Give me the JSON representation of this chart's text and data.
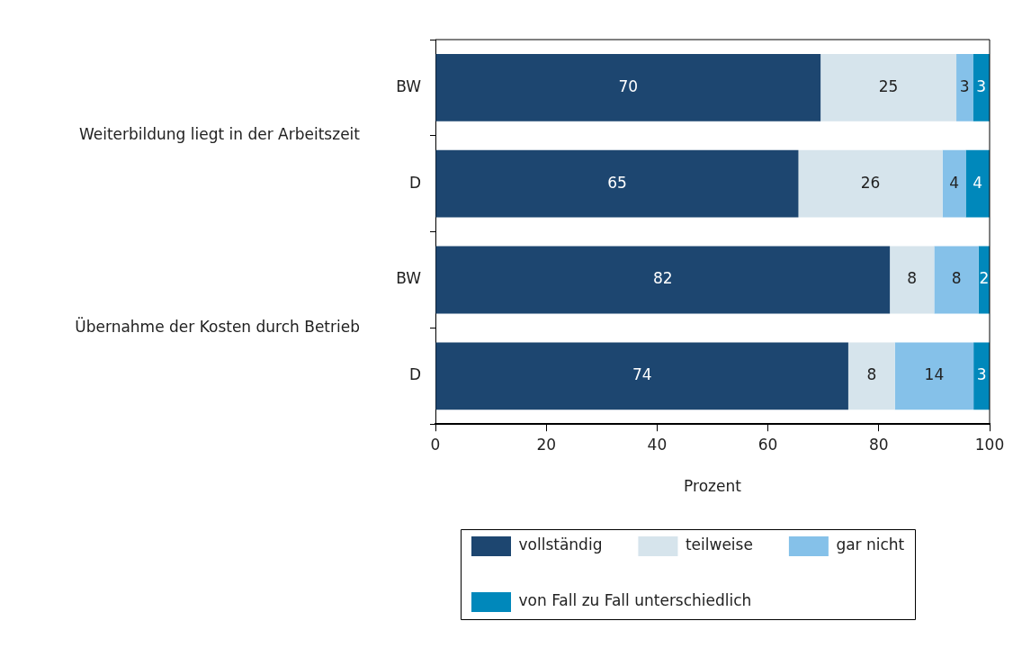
{
  "chart_data": {
    "type": "bar",
    "orientation": "horizontal",
    "stacked": true,
    "categories": [
      "BW",
      "D",
      "BW",
      "D"
    ],
    "annotations": [
      "Weiterbildung liegt in der Arbeitszeit",
      "Übernahme der Kosten durch Betrieb"
    ],
    "xlabel": "Prozent",
    "xlim": [
      0,
      100
    ],
    "xticks": [
      0,
      20,
      40,
      60,
      80,
      100
    ],
    "grid": false,
    "legend": "bottom",
    "series": [
      {
        "name": "vollständig",
        "color": "#1d4670",
        "values": [
          69.5,
          65.5,
          82,
          74.5
        ],
        "value_labels": [
          "70",
          "65",
          "82",
          "74"
        ]
      },
      {
        "name": "teilweise",
        "color": "#d6e4ec",
        "values": [
          24.5,
          26,
          8,
          8.4
        ],
        "value_labels": [
          "25",
          "26",
          "8",
          "8"
        ]
      },
      {
        "name": "gar nicht",
        "color": "#85c1e9",
        "values": [
          3,
          4.2,
          8,
          14.2
        ],
        "value_labels": [
          "3",
          "4",
          "8",
          "14"
        ]
      },
      {
        "name": "von Fall zu Fall unterschiedlich",
        "color": "#0088bb",
        "values": [
          3,
          4.3,
          2,
          2.9
        ],
        "value_labels": [
          "3",
          "4",
          "2",
          "3"
        ]
      }
    ]
  }
}
